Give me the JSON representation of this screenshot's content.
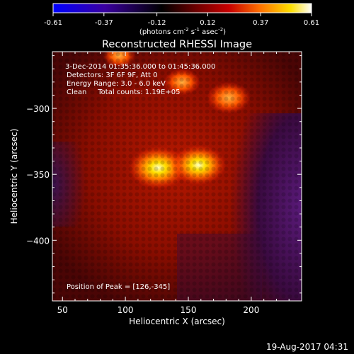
{
  "colorbar": {
    "ticks": [
      "-0.61",
      "-0.37",
      "-0.12",
      "0.12",
      "0.37",
      "0.61"
    ],
    "units_prefix": "(photons cm",
    "units_exp1": "-2",
    "units_mid1": " s",
    "units_exp2": "-1",
    "units_mid2": " asec",
    "units_exp3": "-2",
    "units_suffix": ")",
    "range": [
      -0.61,
      0.61
    ],
    "colormap_stops": [
      "#0000ff",
      "#3a00a0",
      "#000000",
      "#6a0000",
      "#c80000",
      "#ff7000",
      "#ffe000",
      "#ffffff"
    ]
  },
  "chart_data": {
    "type": "heatmap",
    "title": "Reconstructed RHESSI Image",
    "xlabel": "Heliocentric X (arcsec)",
    "ylabel": "Heliocentric Y (arcsec)",
    "xlim": [
      42,
      240
    ],
    "ylim": [
      -446,
      -257
    ],
    "xticks": [
      50,
      100,
      150,
      200
    ],
    "yticks": [
      -300,
      -350,
      -400
    ],
    "annotations": [
      "3-Dec-2014 01:35:36.000 to 01:45:36.000",
      "Detectors: 3F 6F 9F, Att 0",
      "Energy Range: 3.0 - 6.0 keV",
      "Clean     Total counts: 1.19E+05"
    ],
    "peak_label": "Position of Peak = [126,-345]",
    "sources": [
      {
        "x": 126,
        "y": -345,
        "peak": 0.61
      },
      {
        "x": 158,
        "y": -343,
        "peak": 0.56
      },
      {
        "x": 182,
        "y": -292,
        "peak": 0.4
      },
      {
        "x": 145,
        "y": -280,
        "peak": 0.3
      },
      {
        "x": 95,
        "y": -260,
        "peak": 0.25
      }
    ]
  },
  "footer": {
    "timestamp": "19-Aug-2017 04:31"
  }
}
